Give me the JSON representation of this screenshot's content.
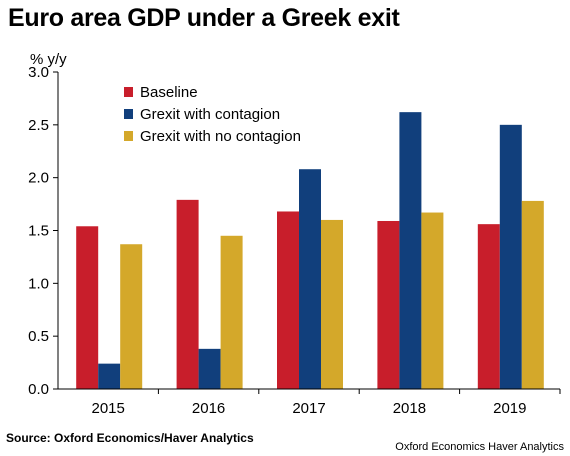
{
  "colors": {
    "baseline": "#c81e2b",
    "contagion": "#113f7c",
    "no_contagion": "#d4a82a"
  },
  "chart_data": {
    "type": "bar",
    "title": "Euro area GDP under a Greek exit",
    "ylabel": "% y/y",
    "xlabel": "",
    "ylim": [
      0,
      3.0
    ],
    "yticks": [
      "0.0",
      "0.5",
      "1.0",
      "1.5",
      "2.0",
      "2.5",
      "3.0"
    ],
    "categories": [
      "2015",
      "2016",
      "2017",
      "2018",
      "2019"
    ],
    "series": [
      {
        "name": "Baseline",
        "values": [
          1.54,
          1.79,
          1.68,
          1.59,
          1.56
        ]
      },
      {
        "name": "Grexit with contagion",
        "values": [
          0.24,
          0.38,
          2.08,
          2.62,
          2.5
        ]
      },
      {
        "name": "Grexit with no contagion",
        "values": [
          1.37,
          1.45,
          1.6,
          1.67,
          1.78
        ]
      }
    ],
    "legend": "top-left",
    "grid": false,
    "source": "Source: Oxford Economics/Haver Analytics",
    "watermark": "Oxford Economics Haver Analytics"
  }
}
